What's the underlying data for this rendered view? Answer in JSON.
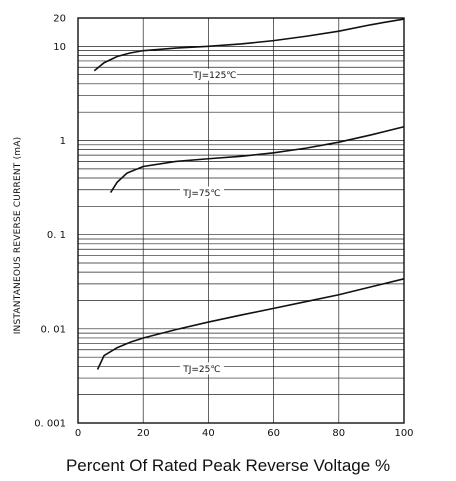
{
  "chart_data": {
    "type": "line",
    "xlabel": "Percent Of Rated Peak Reverse Voltage %",
    "ylabel": "INSTANTANEOUS REVERSE CURRENT (mA)",
    "x_scale": "linear",
    "y_scale": "log",
    "xlim": [
      0,
      100
    ],
    "ylim": [
      0.001,
      20
    ],
    "grid": true,
    "x_ticks": [
      "0",
      "20",
      "40",
      "60",
      "80",
      "100"
    ],
    "y_ticks": [
      "20",
      "10",
      "1",
      "0. 1",
      "0. 01",
      "0. 001"
    ],
    "y_tick_values": [
      20,
      10,
      1,
      0.1,
      0.01,
      0.001
    ],
    "series": [
      {
        "name": "TJ=125℃",
        "x": [
          5,
          8,
          12,
          16,
          20,
          30,
          40,
          50,
          60,
          70,
          80,
          90,
          100
        ],
        "y": [
          5.5,
          6.7,
          7.8,
          8.5,
          9.0,
          9.6,
          10.0,
          10.6,
          11.5,
          12.8,
          14.5,
          17.0,
          19.5
        ],
        "label_at": [
          42,
          5.0
        ]
      },
      {
        "name": "TJ=75℃",
        "x": [
          10,
          12,
          15,
          20,
          30,
          40,
          50,
          60,
          70,
          80,
          90,
          100
        ],
        "y": [
          0.28,
          0.36,
          0.45,
          0.53,
          0.6,
          0.64,
          0.68,
          0.74,
          0.83,
          0.96,
          1.15,
          1.4
        ],
        "label_at": [
          38,
          0.28
        ]
      },
      {
        "name": "TJ=25℃",
        "x": [
          6,
          8,
          12,
          16,
          20,
          30,
          40,
          50,
          60,
          70,
          80,
          90,
          100
        ],
        "y": [
          0.0037,
          0.0052,
          0.0063,
          0.0072,
          0.008,
          0.0098,
          0.0118,
          0.014,
          0.0165,
          0.0195,
          0.023,
          0.028,
          0.034
        ],
        "label_at": [
          38,
          0.0038
        ]
      }
    ]
  }
}
